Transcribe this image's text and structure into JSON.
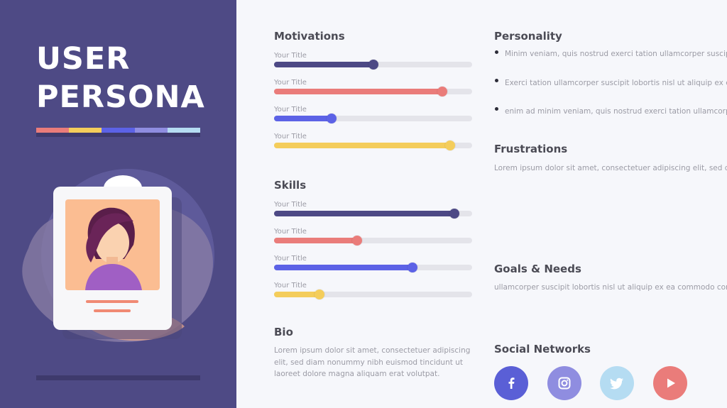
{
  "persona_title": [
    "USER",
    "PERSONA"
  ],
  "colors": {
    "sidebar_bg": "#4e4a85",
    "navy": "#4d4985",
    "coral": "#ea7c7a",
    "blue": "#5c62e6",
    "yellow": "#f4cd5b",
    "lavender": "#8f8de0",
    "light_blue": "#b5dcf2"
  },
  "motivations": {
    "heading": "Motivations",
    "items": [
      {
        "label": "Your Title",
        "level": 0.5,
        "color": "#4d4985"
      },
      {
        "label": "Your Title",
        "level": 0.85,
        "color": "#ea7c7a"
      },
      {
        "label": "Your Title",
        "level": 0.29,
        "color": "#5c62e6"
      },
      {
        "label": "Your Title",
        "level": 0.89,
        "color": "#f4cd5b"
      }
    ]
  },
  "skills": {
    "heading": "Skills",
    "items": [
      {
        "label": "Your Title",
        "level": 0.91,
        "color": "#4d4985"
      },
      {
        "label": "Your Title",
        "level": 0.42,
        "color": "#ea7c7a"
      },
      {
        "label": "Your Title",
        "level": 0.7,
        "color": "#5c62e6"
      },
      {
        "label": "Your Title",
        "level": 0.23,
        "color": "#f4cd5b"
      }
    ]
  },
  "bio": {
    "heading": "Bio",
    "lines": [
      "Lorem ipsum dolor sit amet, consectetuer adipiscing",
      "elit, sed diam nonummy nibh euismod tincidunt ut",
      "laoreet dolore magna aliquam erat volutpat."
    ]
  },
  "personality": {
    "heading": "Personality",
    "bullets": [
      "Minim veniam, quis nostrud exerci tation ullamcorper suscipit",
      "Exerci tation ullamcorper suscipit lobortis nisl ut aliquip ex ea",
      "enim ad minim veniam, quis nostrud exerci tation ullamcorper"
    ]
  },
  "frustrations": {
    "heading": "Frustrations",
    "text": "Lorem ipsum dolor sit amet, consectetuer adipiscing elit, sed diam"
  },
  "goals": {
    "heading": "Goals & Needs",
    "text": "ullamcorper suscipit lobortis nisl ut aliquip ex ea commodo consequat"
  },
  "social": {
    "heading": "Social Networks",
    "networks": [
      {
        "icon": "facebook-icon",
        "color": "#5a5fd6"
      },
      {
        "icon": "instagram-icon",
        "color": "#8f8de0"
      },
      {
        "icon": "twitter-icon",
        "color": "#b5dcf2"
      },
      {
        "icon": "youtube-icon",
        "color": "#ea7c7a"
      }
    ]
  }
}
